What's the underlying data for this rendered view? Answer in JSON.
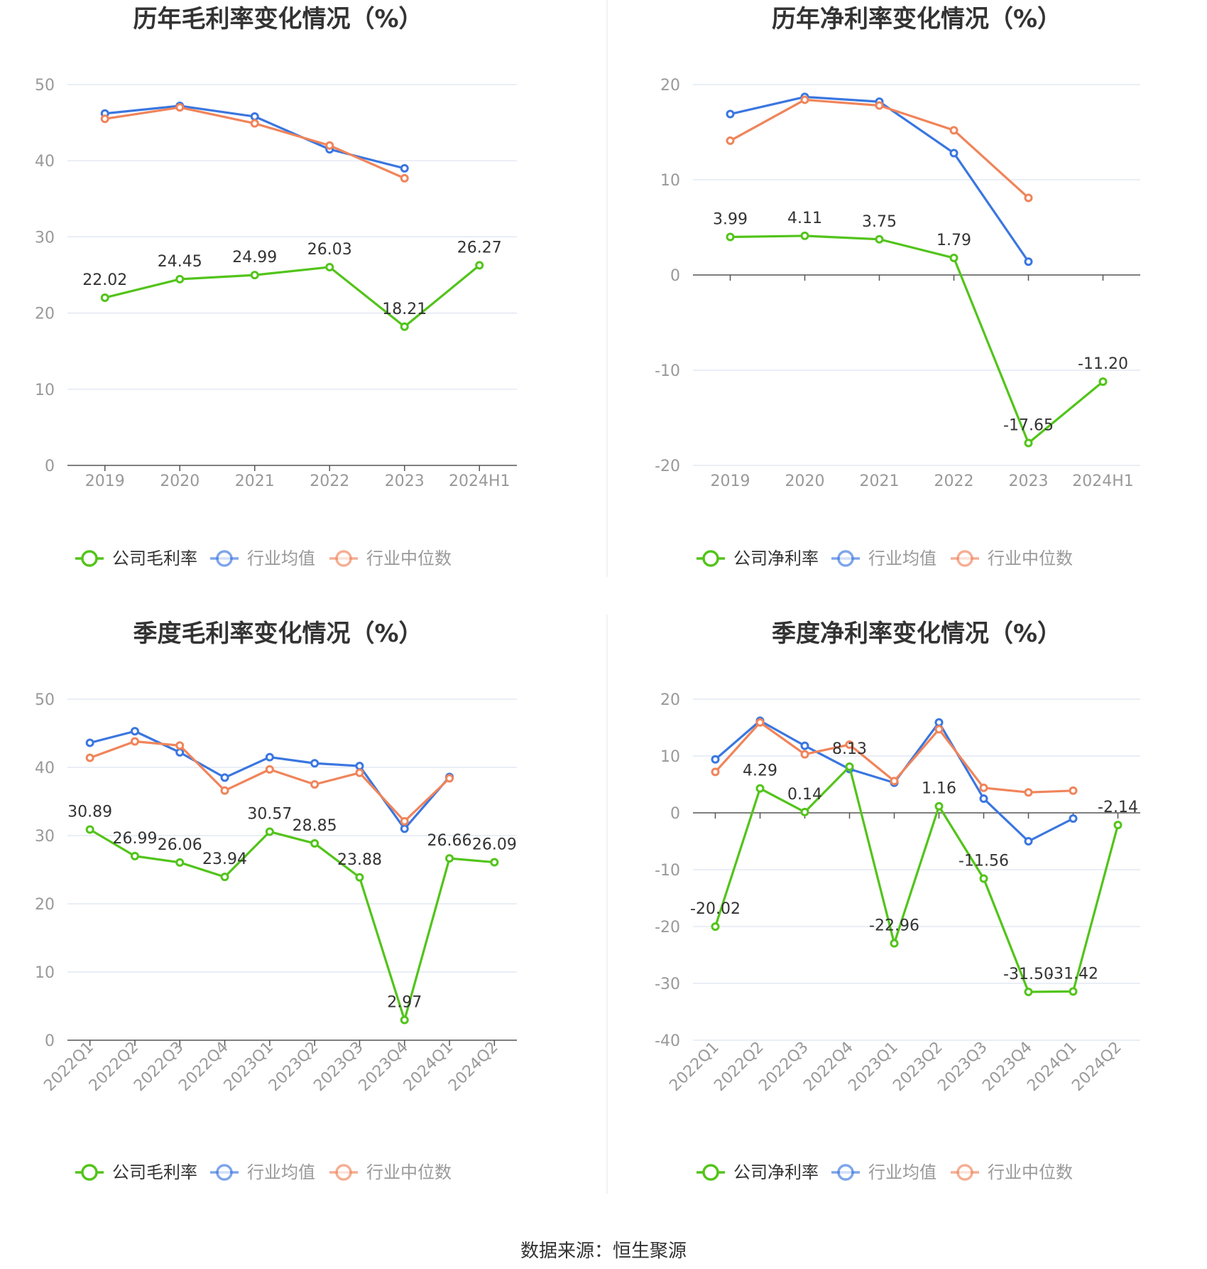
{
  "source": "数据来源：恒生聚源",
  "colors": {
    "company": "#52C41A",
    "avg": "#3A76E0",
    "median": "#F0845A",
    "grid": "#DDE3F0",
    "axis": "#555555",
    "tick_text": "#999999",
    "title": "#333333",
    "label": "#333333",
    "divider": "#E6E6E6"
  },
  "chart_data": [
    {
      "type": "line",
      "title": "历年毛利率变化情况（%）",
      "categories": [
        "2019",
        "2020",
        "2021",
        "2022",
        "2023",
        "2024H1"
      ],
      "ylim": [
        0,
        50
      ],
      "yticks": [
        0,
        10,
        20,
        30,
        40,
        50
      ],
      "rotate_x": false,
      "series": [
        {
          "name": "公司毛利率",
          "role": "company",
          "values": [
            22.02,
            24.45,
            24.99,
            26.03,
            18.21,
            26.27
          ],
          "labels": [
            "22.02",
            "24.45",
            "24.99",
            "26.03",
            "18.21",
            "26.27"
          ]
        },
        {
          "name": "行业均值",
          "role": "avg",
          "values": [
            46.2,
            47.2,
            45.8,
            41.5,
            39.0,
            null
          ]
        },
        {
          "name": "行业中位数",
          "role": "median",
          "values": [
            45.5,
            47.0,
            44.9,
            42.0,
            37.7,
            null
          ]
        }
      ]
    },
    {
      "type": "line",
      "title": "历年净利率变化情况（%）",
      "categories": [
        "2019",
        "2020",
        "2021",
        "2022",
        "2023",
        "2024H1"
      ],
      "ylim": [
        -20,
        20
      ],
      "yticks": [
        -20,
        -10,
        0,
        10,
        20
      ],
      "rotate_x": false,
      "series": [
        {
          "name": "公司净利率",
          "role": "company",
          "values": [
            3.99,
            4.11,
            3.75,
            1.79,
            -17.65,
            -11.2
          ],
          "labels": [
            "3.99",
            "4.11",
            "3.75",
            "1.79",
            "-17.65",
            "-11.20"
          ]
        },
        {
          "name": "行业均值",
          "role": "avg",
          "values": [
            16.9,
            18.7,
            18.2,
            12.8,
            1.4,
            null
          ]
        },
        {
          "name": "行业中位数",
          "role": "median",
          "values": [
            14.1,
            18.4,
            17.8,
            15.2,
            8.1,
            null
          ]
        }
      ]
    },
    {
      "type": "line",
      "title": "季度毛利率变化情况（%）",
      "categories": [
        "2022Q1",
        "2022Q2",
        "2022Q3",
        "2022Q4",
        "2023Q1",
        "2023Q2",
        "2023Q3",
        "2023Q4",
        "2024Q1",
        "2024Q2"
      ],
      "ylim": [
        0,
        50
      ],
      "yticks": [
        0,
        10,
        20,
        30,
        40,
        50
      ],
      "rotate_x": true,
      "series": [
        {
          "name": "公司毛利率",
          "role": "company",
          "values": [
            30.89,
            26.99,
            26.06,
            23.94,
            30.57,
            28.85,
            23.88,
            2.97,
            26.66,
            26.09
          ],
          "labels": [
            "30.89",
            "26.99",
            "26.06",
            "23.94",
            "30.57",
            "28.85",
            "23.88",
            "2.97",
            "26.66",
            "26.09"
          ]
        },
        {
          "name": "行业均值",
          "role": "avg",
          "values": [
            43.6,
            45.3,
            42.2,
            38.5,
            41.5,
            40.6,
            40.2,
            31.0,
            38.6,
            null
          ]
        },
        {
          "name": "行业中位数",
          "role": "median",
          "values": [
            41.4,
            43.8,
            43.2,
            36.6,
            39.7,
            37.5,
            39.2,
            32.1,
            38.4,
            null
          ]
        }
      ]
    },
    {
      "type": "line",
      "title": "季度净利率变化情况（%）",
      "categories": [
        "2022Q1",
        "2022Q2",
        "2022Q3",
        "2022Q4",
        "2023Q1",
        "2023Q2",
        "2023Q3",
        "2023Q4",
        "2024Q1",
        "2024Q2"
      ],
      "ylim": [
        -40,
        20
      ],
      "yticks": [
        -40,
        -30,
        -20,
        -10,
        0,
        10,
        20
      ],
      "rotate_x": true,
      "series": [
        {
          "name": "公司净利率",
          "role": "company",
          "values": [
            -20.02,
            4.29,
            0.14,
            8.13,
            -22.96,
            1.16,
            -11.56,
            -31.5,
            -31.42,
            -2.14
          ],
          "labels": [
            "-20.02",
            "4.29",
            "0.14",
            "8.13",
            "-22.96",
            "1.16",
            "-11.56",
            "-31.50",
            "-31.42",
            "-2.14"
          ]
        },
        {
          "name": "行业均值",
          "role": "avg",
          "values": [
            9.4,
            16.2,
            11.8,
            7.7,
            5.3,
            15.9,
            2.5,
            -5.0,
            -1.0,
            null
          ]
        },
        {
          "name": "行业中位数",
          "role": "median",
          "values": [
            7.2,
            15.9,
            10.3,
            12.0,
            5.6,
            14.7,
            4.4,
            3.6,
            3.9,
            null
          ]
        }
      ]
    }
  ]
}
